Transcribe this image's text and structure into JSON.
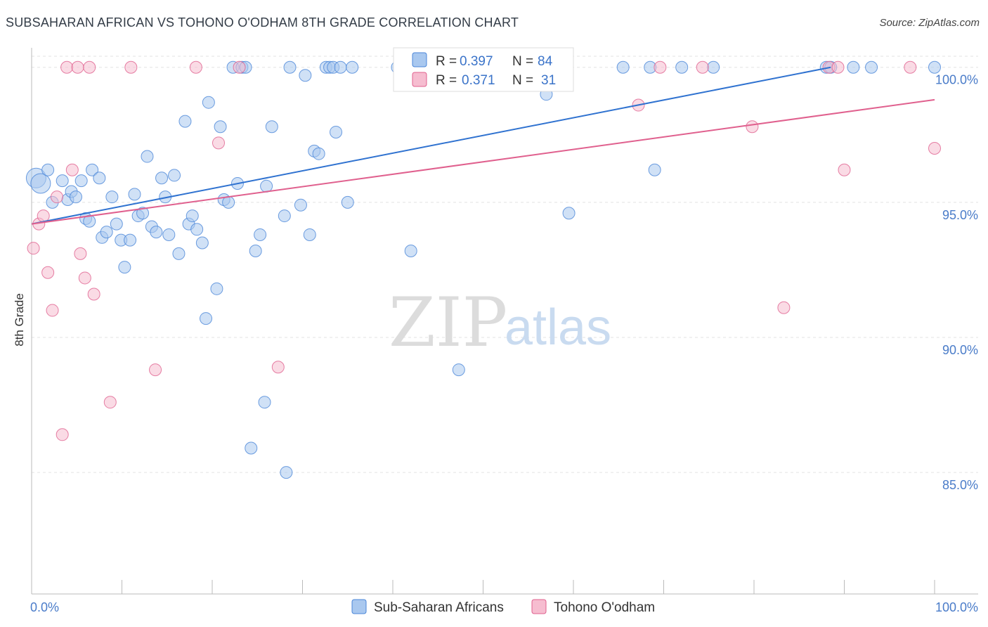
{
  "title": "SUBSAHARAN AFRICAN VS TOHONO O'ODHAM 8TH GRADE CORRELATION CHART",
  "source": "Source: ZipAtlas.com",
  "watermark": {
    "zip": "ZIP",
    "atlas": "atlas"
  },
  "colors": {
    "blue": "#4a86d8",
    "blue_fill": "#a9c8ef",
    "pink": "#e0608e",
    "pink_fill": "#f6bdd0",
    "grid": "#e3e3e3",
    "axis_label": "#4a7cc9"
  },
  "chart_data": {
    "type": "scatter",
    "title": "SUBSAHARAN AFRICAN VS TOHONO O'ODHAM 8TH GRADE CORRELATION CHART",
    "xlabel": "",
    "ylabel": "8th Grade",
    "xlim": [
      0,
      100
    ],
    "ylim": [
      80.5,
      100.8
    ],
    "x_tick_labels": [
      "0.0%",
      "100.0%"
    ],
    "y_ticks": [
      85,
      90,
      95,
      100
    ],
    "y_tick_labels": [
      "85.0%",
      "90.0%",
      "95.0%",
      "100.0%"
    ],
    "grid": true,
    "legend_position": "top-center",
    "series": [
      {
        "name": "Sub-Saharan Africans",
        "color": "#4a86d8",
        "R": "0.397",
        "N": "84",
        "trend": {
          "x": [
            0,
            88.5
          ],
          "y": [
            94.2,
            100.0
          ]
        },
        "points": [
          {
            "x": 0.5,
            "y": 95.9,
            "big": true
          },
          {
            "x": 1.0,
            "y": 95.7,
            "big": true
          },
          {
            "x": 1.8,
            "y": 96.2
          },
          {
            "x": 2.3,
            "y": 95.0
          },
          {
            "x": 3.4,
            "y": 95.8
          },
          {
            "x": 4.0,
            "y": 95.1
          },
          {
            "x": 4.4,
            "y": 95.4
          },
          {
            "x": 4.9,
            "y": 95.2
          },
          {
            "x": 5.5,
            "y": 95.8
          },
          {
            "x": 6.0,
            "y": 94.4
          },
          {
            "x": 6.4,
            "y": 94.3
          },
          {
            "x": 6.7,
            "y": 96.2
          },
          {
            "x": 7.5,
            "y": 95.9
          },
          {
            "x": 7.8,
            "y": 93.7
          },
          {
            "x": 8.3,
            "y": 93.9
          },
          {
            "x": 8.9,
            "y": 95.2
          },
          {
            "x": 9.4,
            "y": 94.2
          },
          {
            "x": 9.9,
            "y": 93.6
          },
          {
            "x": 10.3,
            "y": 92.6
          },
          {
            "x": 10.9,
            "y": 93.6
          },
          {
            "x": 11.4,
            "y": 95.3
          },
          {
            "x": 11.8,
            "y": 94.5
          },
          {
            "x": 12.3,
            "y": 94.6
          },
          {
            "x": 12.8,
            "y": 96.7
          },
          {
            "x": 13.3,
            "y": 94.1
          },
          {
            "x": 13.8,
            "y": 93.9
          },
          {
            "x": 14.4,
            "y": 95.9
          },
          {
            "x": 14.8,
            "y": 95.2
          },
          {
            "x": 15.2,
            "y": 93.8
          },
          {
            "x": 15.8,
            "y": 96.0
          },
          {
            "x": 16.3,
            "y": 93.1
          },
          {
            "x": 17.0,
            "y": 98.0
          },
          {
            "x": 17.4,
            "y": 94.2
          },
          {
            "x": 17.8,
            "y": 94.5
          },
          {
            "x": 18.3,
            "y": 94.0
          },
          {
            "x": 18.9,
            "y": 93.5
          },
          {
            "x": 19.3,
            "y": 90.7
          },
          {
            "x": 19.6,
            "y": 98.7
          },
          {
            "x": 20.5,
            "y": 91.8
          },
          {
            "x": 20.9,
            "y": 97.8
          },
          {
            "x": 21.3,
            "y": 95.1
          },
          {
            "x": 21.8,
            "y": 95.0
          },
          {
            "x": 22.3,
            "y": 100.0
          },
          {
            "x": 22.8,
            "y": 95.7
          },
          {
            "x": 23.3,
            "y": 100.0
          },
          {
            "x": 23.7,
            "y": 100.0
          },
          {
            "x": 24.3,
            "y": 85.9
          },
          {
            "x": 24.8,
            "y": 93.2
          },
          {
            "x": 25.3,
            "y": 93.8
          },
          {
            "x": 25.8,
            "y": 87.6
          },
          {
            "x": 26.0,
            "y": 95.6
          },
          {
            "x": 26.6,
            "y": 97.8
          },
          {
            "x": 28.0,
            "y": 94.5
          },
          {
            "x": 28.2,
            "y": 85.0
          },
          {
            "x": 28.6,
            "y": 100.0
          },
          {
            "x": 29.8,
            "y": 94.9
          },
          {
            "x": 30.3,
            "y": 99.7
          },
          {
            "x": 30.8,
            "y": 93.8
          },
          {
            "x": 31.3,
            "y": 96.9
          },
          {
            "x": 31.8,
            "y": 96.8
          },
          {
            "x": 32.6,
            "y": 100.0
          },
          {
            "x": 33.0,
            "y": 100.0
          },
          {
            "x": 33.4,
            "y": 100.0
          },
          {
            "x": 33.7,
            "y": 97.6
          },
          {
            "x": 34.2,
            "y": 100.0
          },
          {
            "x": 35.0,
            "y": 95.0
          },
          {
            "x": 35.5,
            "y": 100.0
          },
          {
            "x": 40.5,
            "y": 100.0
          },
          {
            "x": 42.0,
            "y": 93.2
          },
          {
            "x": 47.5,
            "y": 100.0
          },
          {
            "x": 47.3,
            "y": 88.8
          },
          {
            "x": 57.0,
            "y": 99.0
          },
          {
            "x": 59.3,
            "y": 100.0
          },
          {
            "x": 59.5,
            "y": 94.6
          },
          {
            "x": 65.5,
            "y": 100.0
          },
          {
            "x": 68.5,
            "y": 100.0
          },
          {
            "x": 69.0,
            "y": 96.2
          },
          {
            "x": 72.0,
            "y": 100.0
          },
          {
            "x": 75.5,
            "y": 100.0
          },
          {
            "x": 88.0,
            "y": 100.0
          },
          {
            "x": 88.5,
            "y": 100.0
          },
          {
            "x": 91.0,
            "y": 100.0
          },
          {
            "x": 93.0,
            "y": 100.0
          },
          {
            "x": 100.0,
            "y": 100.0
          }
        ]
      },
      {
        "name": "Tohono O'odham",
        "color": "#e0608e",
        "R": "0.371",
        "N": "31",
        "trend": {
          "x": [
            0,
            100
          ],
          "y": [
            94.2,
            98.8
          ]
        },
        "points": [
          {
            "x": 0.2,
            "y": 93.3
          },
          {
            "x": 0.8,
            "y": 94.2
          },
          {
            "x": 1.3,
            "y": 94.5
          },
          {
            "x": 1.8,
            "y": 92.4
          },
          {
            "x": 2.3,
            "y": 91.0
          },
          {
            "x": 2.8,
            "y": 95.2
          },
          {
            "x": 3.4,
            "y": 86.4
          },
          {
            "x": 3.9,
            "y": 100.0
          },
          {
            "x": 4.5,
            "y": 96.2
          },
          {
            "x": 5.1,
            "y": 100.0
          },
          {
            "x": 5.4,
            "y": 93.1
          },
          {
            "x": 5.9,
            "y": 92.2
          },
          {
            "x": 6.4,
            "y": 100.0
          },
          {
            "x": 6.9,
            "y": 91.6
          },
          {
            "x": 8.7,
            "y": 87.6
          },
          {
            "x": 11.0,
            "y": 100.0
          },
          {
            "x": 13.7,
            "y": 88.8
          },
          {
            "x": 18.2,
            "y": 100.0
          },
          {
            "x": 20.7,
            "y": 97.2
          },
          {
            "x": 23.0,
            "y": 100.0
          },
          {
            "x": 27.3,
            "y": 88.9
          },
          {
            "x": 67.2,
            "y": 98.6
          },
          {
            "x": 69.6,
            "y": 100.0
          },
          {
            "x": 74.3,
            "y": 100.0
          },
          {
            "x": 79.8,
            "y": 97.8
          },
          {
            "x": 83.3,
            "y": 91.1
          },
          {
            "x": 88.3,
            "y": 100.0
          },
          {
            "x": 89.3,
            "y": 100.0
          },
          {
            "x": 90.0,
            "y": 96.2
          },
          {
            "x": 97.3,
            "y": 100.0
          },
          {
            "x": 100.0,
            "y": 97.0
          }
        ]
      }
    ]
  }
}
